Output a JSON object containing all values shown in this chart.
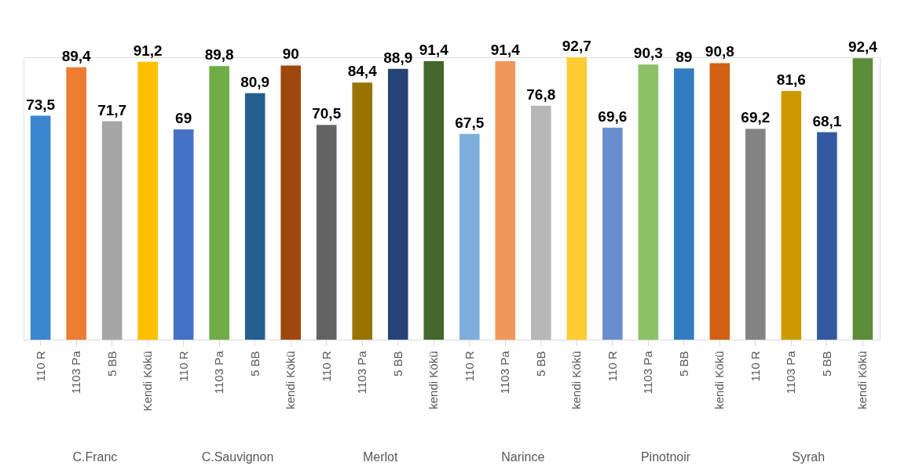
{
  "chart_data": {
    "type": "bar",
    "categories": [
      "110 R",
      "1103 Pa",
      "5 BB",
      "Kendi Kökü",
      "110 R",
      "1103 Pa",
      "5 BB",
      "kendi Kökü",
      "110 R",
      "1103 Pa",
      "5 BB",
      "kendi Kökü",
      "110 R",
      "1103 Pa",
      "5 BB",
      "kendi Kökü",
      "110 R",
      "1103 Pa",
      "5 BB",
      "kendi Kökü",
      "110 R",
      "1103 Pa",
      "5 BB",
      "kendi Kökü"
    ],
    "values": [
      73.5,
      89.4,
      71.7,
      91.2,
      69,
      89.8,
      80.9,
      90,
      70.5,
      84.4,
      88.9,
      91.4,
      67.5,
      91.4,
      76.8,
      92.7,
      69.6,
      90.3,
      89,
      90.8,
      69.2,
      81.6,
      68.1,
      92.4
    ],
    "colors": [
      "#3a87d0",
      "#ed7d31",
      "#a5a5a5",
      "#ffc000",
      "#4472c4",
      "#70ad47",
      "#255e91",
      "#9e480e",
      "#636363",
      "#997300",
      "#264478",
      "#43682b",
      "#7cafdd",
      "#f1975a",
      "#b7b7b7",
      "#ffcd33",
      "#698ed0",
      "#8cc168",
      "#327dc2",
      "#d26012",
      "#848484",
      "#cc9a00",
      "#335aa1",
      "#5a8c39"
    ],
    "annotations": [
      "C.Franc",
      "C.Sauvignon",
      "Merlot",
      "Narince",
      "Pinotnoir",
      "Syrah"
    ],
    "value_labels": [
      "73,5",
      "89,4",
      "71,7",
      "91,2",
      "69",
      "89,8",
      "80,9",
      "90",
      "70,5",
      "84,4",
      "88,9",
      "91,4",
      "67,5",
      "91,4",
      "76,8",
      "92,7",
      "69,6",
      "90,3",
      "89",
      "90,8",
      "69,2",
      "81,6",
      "68,1",
      "92,4"
    ],
    "tick_labels": "x",
    "grid": false
  }
}
